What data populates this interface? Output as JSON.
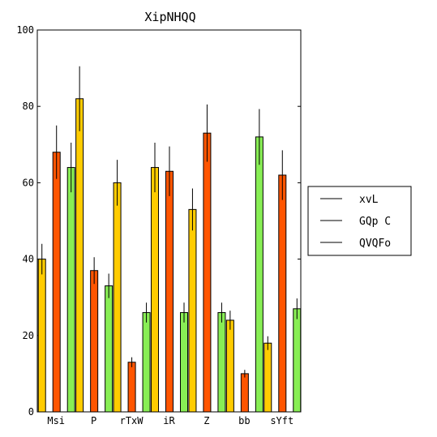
{
  "chart_data": {
    "type": "bar",
    "title": "XipNHQQ",
    "xlabel": "",
    "ylabel": "",
    "categories": [
      "Msi",
      "P",
      "rTxW",
      "iR",
      "Z",
      "bb",
      "sYft"
    ],
    "ylim": [
      0,
      100
    ],
    "yticks": [
      "0",
      "20",
      "40",
      "60",
      "80",
      "100"
    ],
    "grid": false,
    "legend_position": "right",
    "error_bars": true,
    "series": [
      {
        "name": "xvL",
        "color": "#ffcc00",
        "values": [
          40,
          82,
          60,
          64,
          53,
          24,
          18
        ],
        "errors": [
          4,
          8.5,
          6,
          6.5,
          5.5,
          2.5,
          1.8
        ]
      },
      {
        "name": "GQp C",
        "color": "#ff5500",
        "values": [
          68,
          37,
          13,
          63,
          73,
          10,
          62
        ],
        "errors": [
          7,
          3.5,
          1.3,
          6.5,
          7.5,
          1,
          6.5
        ]
      },
      {
        "name": "QVQFo",
        "color": "#88ee55",
        "values": [
          64,
          33,
          26,
          26,
          26,
          72,
          27
        ],
        "errors": [
          6.5,
          3.2,
          2.6,
          2.6,
          2.6,
          7.3,
          2.7
        ]
      }
    ]
  }
}
